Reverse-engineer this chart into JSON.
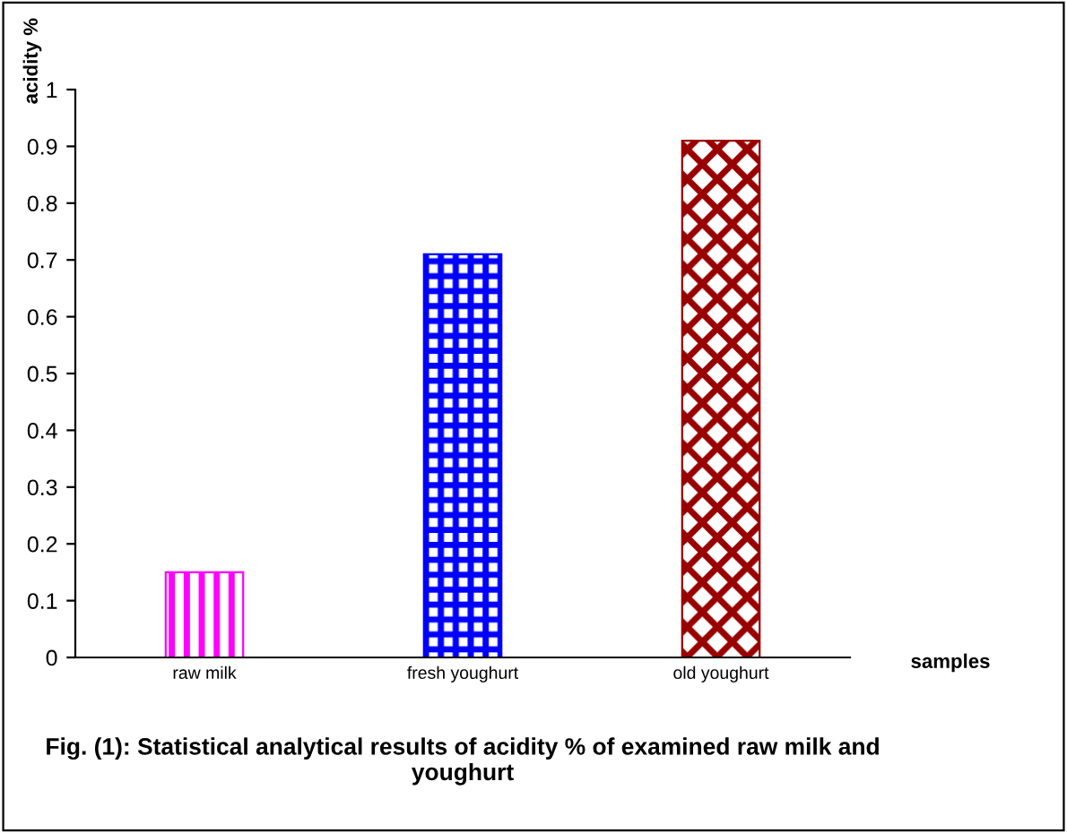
{
  "chart_data": {
    "type": "bar",
    "title": "Fig. (1): Statistical analytical results of acidity % of examined raw milk and youghurt",
    "categories": [
      "raw milk",
      "fresh youghurt",
      "old youghurt"
    ],
    "values": [
      0.15,
      0.71,
      0.91
    ],
    "colors": [
      "#ff00ff",
      "#0000ff",
      "#990000"
    ],
    "xlabel": "samples",
    "ylabel": "acidity %",
    "ylim": [
      0,
      1
    ],
    "yticks": [
      0,
      0.1,
      0.2,
      0.3,
      0.4,
      0.5,
      0.6,
      0.7,
      0.8,
      0.9,
      1
    ],
    "grid": false,
    "legend": false
  }
}
